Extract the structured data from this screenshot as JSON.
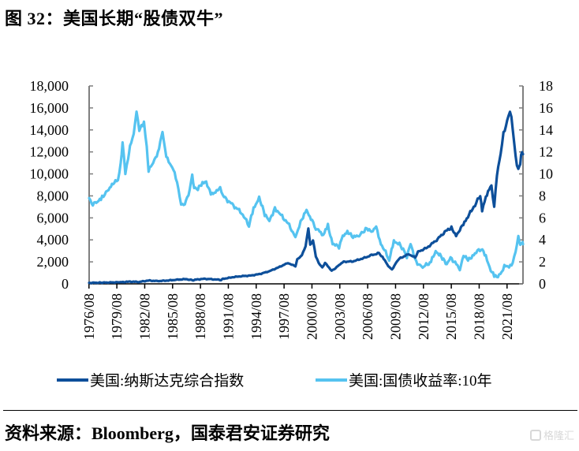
{
  "title": "图 32：美国长期“股债双牛”",
  "source": "资料来源：Bloomberg，国泰君安证券研究",
  "watermark": "格隆汇",
  "colors": {
    "nasdaq": "#0d4f9a",
    "yield": "#55c3f0",
    "axis": "#7f7f7f"
  },
  "chart_data": {
    "type": "line",
    "title": "",
    "xlabel": "",
    "ylabel_left": "",
    "ylabel_right": "",
    "x_range": [
      1976.6,
      2023.3
    ],
    "ylim_left": [
      0,
      18000
    ],
    "ylim_right": [
      0,
      18
    ],
    "yticks_left": [
      "0",
      "2,000",
      "4,000",
      "6,000",
      "8,000",
      "10,000",
      "12,000",
      "14,000",
      "16,000",
      "18,000"
    ],
    "yticks_right": [
      "0",
      "2",
      "4",
      "6",
      "8",
      "10",
      "12",
      "14",
      "16",
      "18"
    ],
    "xticks": [
      "1976/08",
      "1979/08",
      "1982/08",
      "1985/08",
      "1988/08",
      "1991/08",
      "1994/08",
      "1997/08",
      "2000/08",
      "2003/08",
      "2006/08",
      "2009/08",
      "2012/08",
      "2015/08",
      "2018/08",
      "2021/08"
    ],
    "legend_position": "bottom",
    "series": [
      {
        "name": "美国:纳斯达克综合指数",
        "axis": "left",
        "points": [
          [
            1976.6,
            90
          ],
          [
            1978,
            110
          ],
          [
            1980,
            150
          ],
          [
            1981,
            200
          ],
          [
            1982,
            180
          ],
          [
            1983,
            300
          ],
          [
            1984,
            250
          ],
          [
            1985,
            300
          ],
          [
            1986,
            370
          ],
          [
            1987,
            430
          ],
          [
            1987.8,
            330
          ],
          [
            1988,
            380
          ],
          [
            1989,
            450
          ],
          [
            1990,
            420
          ],
          [
            1990.8,
            350
          ],
          [
            1991,
            450
          ],
          [
            1992,
            600
          ],
          [
            1993,
            700
          ],
          [
            1994,
            750
          ],
          [
            1995,
            900
          ],
          [
            1996,
            1150
          ],
          [
            1997,
            1500
          ],
          [
            1998,
            1900
          ],
          [
            1998.8,
            1600
          ],
          [
            1999,
            2200
          ],
          [
            1999.5,
            2600
          ],
          [
            1999.9,
            3500
          ],
          [
            2000.2,
            5000
          ],
          [
            2000.4,
            3500
          ],
          [
            2000.7,
            4000
          ],
          [
            2001,
            2500
          ],
          [
            2001.3,
            1900
          ],
          [
            2001.7,
            1500
          ],
          [
            2002,
            1900
          ],
          [
            2002.7,
            1200
          ],
          [
            2003,
            1350
          ],
          [
            2003.5,
            1700
          ],
          [
            2004,
            2000
          ],
          [
            2005,
            2050
          ],
          [
            2006,
            2300
          ],
          [
            2007,
            2600
          ],
          [
            2007.8,
            2800
          ],
          [
            2008.3,
            2300
          ],
          [
            2008.8,
            1600
          ],
          [
            2009.2,
            1300
          ],
          [
            2009.7,
            2000
          ],
          [
            2010,
            2300
          ],
          [
            2011,
            2700
          ],
          [
            2011.7,
            2400
          ],
          [
            2012,
            2900
          ],
          [
            2013,
            3300
          ],
          [
            2014,
            4000
          ],
          [
            2015,
            4800
          ],
          [
            2015.6,
            5100
          ],
          [
            2016.1,
            4400
          ],
          [
            2016.5,
            4900
          ],
          [
            2017,
            5600
          ],
          [
            2018,
            7000
          ],
          [
            2018.7,
            8000
          ],
          [
            2018.9,
            6600
          ],
          [
            2019.3,
            8000
          ],
          [
            2019.9,
            8900
          ],
          [
            2020.2,
            6900
          ],
          [
            2020.5,
            10000
          ],
          [
            2020.9,
            12000
          ],
          [
            2021.2,
            13500
          ],
          [
            2021.6,
            14800
          ],
          [
            2021.9,
            16000
          ],
          [
            2022.2,
            14000
          ],
          [
            2022.5,
            11500
          ],
          [
            2022.8,
            10500
          ],
          [
            2023.0,
            10900
          ],
          [
            2023.2,
            12000
          ],
          [
            2023.3,
            11800
          ]
        ]
      },
      {
        "name": "美国:国债收益率:10年",
        "axis": "right",
        "points": [
          [
            1976.6,
            7.8
          ],
          [
            1977,
            7.3
          ],
          [
            1977.5,
            7.4
          ],
          [
            1978,
            7.9
          ],
          [
            1978.7,
            8.6
          ],
          [
            1979.3,
            9.2
          ],
          [
            1979.7,
            9.4
          ],
          [
            1980.0,
            11.0
          ],
          [
            1980.2,
            12.8
          ],
          [
            1980.5,
            10.0
          ],
          [
            1980.8,
            11.5
          ],
          [
            1981,
            12.5
          ],
          [
            1981.4,
            13.5
          ],
          [
            1981.7,
            15.8
          ],
          [
            1982,
            14.0
          ],
          [
            1982.5,
            14.6
          ],
          [
            1982.8,
            12.5
          ],
          [
            1983,
            10.3
          ],
          [
            1983.5,
            11.0
          ],
          [
            1984,
            12.0
          ],
          [
            1984.5,
            13.8
          ],
          [
            1984.9,
            11.5
          ],
          [
            1985.3,
            11.0
          ],
          [
            1985.8,
            10.2
          ],
          [
            1986.2,
            8.5
          ],
          [
            1986.5,
            7.2
          ],
          [
            1986.9,
            7.4
          ],
          [
            1987.3,
            8.0
          ],
          [
            1987.7,
            9.8
          ],
          [
            1987.9,
            8.8
          ],
          [
            1988.3,
            8.6
          ],
          [
            1988.8,
            9.2
          ],
          [
            1989.2,
            9.3
          ],
          [
            1989.7,
            8.1
          ],
          [
            1990.2,
            8.3
          ],
          [
            1990.7,
            8.9
          ],
          [
            1991,
            8.0
          ],
          [
            1992,
            7.2
          ],
          [
            1993,
            6.5
          ],
          [
            1993.8,
            5.3
          ],
          [
            1994.3,
            6.8
          ],
          [
            1994.9,
            7.9
          ],
          [
            1995.5,
            6.3
          ],
          [
            1996,
            5.7
          ],
          [
            1996.6,
            6.9
          ],
          [
            1997,
            6.5
          ],
          [
            1998,
            5.5
          ],
          [
            1998.8,
            4.3
          ],
          [
            1999.5,
            5.9
          ],
          [
            2000,
            6.6
          ],
          [
            2000.6,
            5.8
          ],
          [
            2001,
            5.1
          ],
          [
            2001.8,
            4.4
          ],
          [
            2002.3,
            5.3
          ],
          [
            2002.8,
            3.7
          ],
          [
            2003.5,
            3.3
          ],
          [
            2003.9,
            4.3
          ],
          [
            2004.4,
            4.8
          ],
          [
            2005,
            4.2
          ],
          [
            2005.8,
            4.5
          ],
          [
            2006.5,
            5.1
          ],
          [
            2007,
            4.7
          ],
          [
            2007.5,
            5.1
          ],
          [
            2008,
            3.7
          ],
          [
            2008.9,
            2.2
          ],
          [
            2009.4,
            3.8
          ],
          [
            2010,
            3.7
          ],
          [
            2010.8,
            2.5
          ],
          [
            2011.2,
            3.6
          ],
          [
            2011.8,
            2.0
          ],
          [
            2012.5,
            1.5
          ],
          [
            2013.4,
            2.0
          ],
          [
            2013.9,
            3.0
          ],
          [
            2014.5,
            2.5
          ],
          [
            2015.1,
            1.7
          ],
          [
            2015.5,
            2.4
          ],
          [
            2016.5,
            1.4
          ],
          [
            2016.9,
            2.5
          ],
          [
            2017.5,
            2.2
          ],
          [
            2018,
            2.7
          ],
          [
            2018.8,
            3.2
          ],
          [
            2019.3,
            2.5
          ],
          [
            2019.7,
            1.5
          ],
          [
            2020.2,
            0.7
          ],
          [
            2020.6,
            0.6
          ],
          [
            2021,
            1.1
          ],
          [
            2021.3,
            1.7
          ],
          [
            2021.8,
            1.4
          ],
          [
            2022.2,
            2.0
          ],
          [
            2022.5,
            3.0
          ],
          [
            2022.8,
            4.2
          ],
          [
            2023.0,
            3.5
          ],
          [
            2023.2,
            3.9
          ],
          [
            2023.3,
            3.6
          ]
        ]
      }
    ]
  }
}
